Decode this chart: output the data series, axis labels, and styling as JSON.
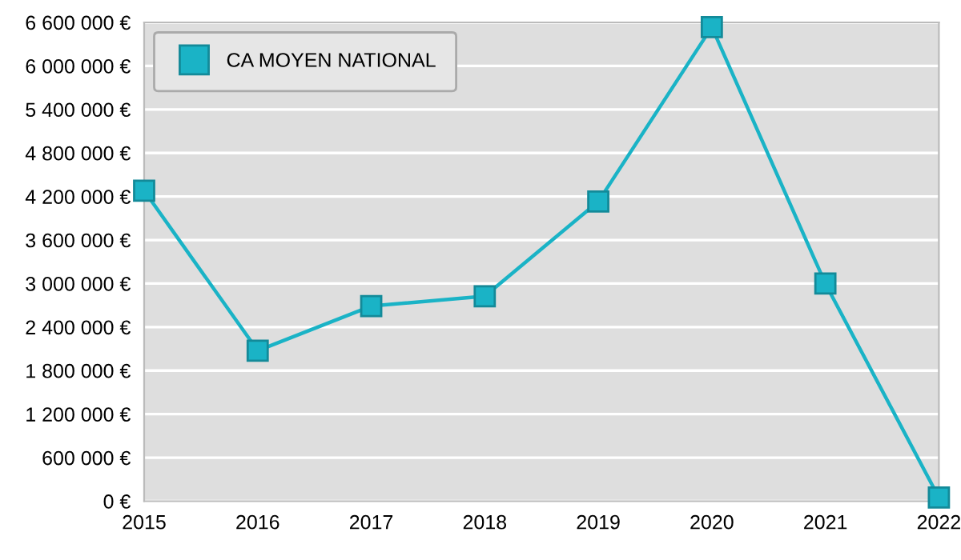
{
  "chart_data": {
    "type": "line",
    "x": [
      2015,
      2016,
      2017,
      2018,
      2019,
      2020,
      2021,
      2022
    ],
    "series": [
      {
        "name": "CA MOYEN NATIONAL",
        "color": "#1ab3c6",
        "values": [
          4280000,
          2075000,
          2690000,
          2825000,
          4130000,
          6535000,
          3000000,
          50000
        ]
      }
    ],
    "xlim": [
      2015,
      2022
    ],
    "xticks": [
      2015,
      2016,
      2017,
      2018,
      2019,
      2020,
      2021,
      2022
    ],
    "ylim": [
      0,
      6600000
    ],
    "yticks": [
      {
        "value": 0,
        "label": "0 €"
      },
      {
        "value": 600000,
        "label": "600 000 €"
      },
      {
        "value": 1200000,
        "label": "1 200 000 €"
      },
      {
        "value": 1800000,
        "label": "1 800 000 €"
      },
      {
        "value": 2400000,
        "label": "2 400 000 €"
      },
      {
        "value": 3000000,
        "label": "3 000 000 €"
      },
      {
        "value": 3600000,
        "label": "3 600 000 €"
      },
      {
        "value": 4200000,
        "label": "4 200 000 €"
      },
      {
        "value": 4800000,
        "label": "4 800 000 €"
      },
      {
        "value": 5400000,
        "label": "5 400 000 €"
      },
      {
        "value": 6000000,
        "label": "6 000 000 €"
      },
      {
        "value": 6600000,
        "label": "6 600 000 €"
      }
    ],
    "grid": "y",
    "legend": "top left",
    "marker": "square",
    "line_style": "solid"
  }
}
